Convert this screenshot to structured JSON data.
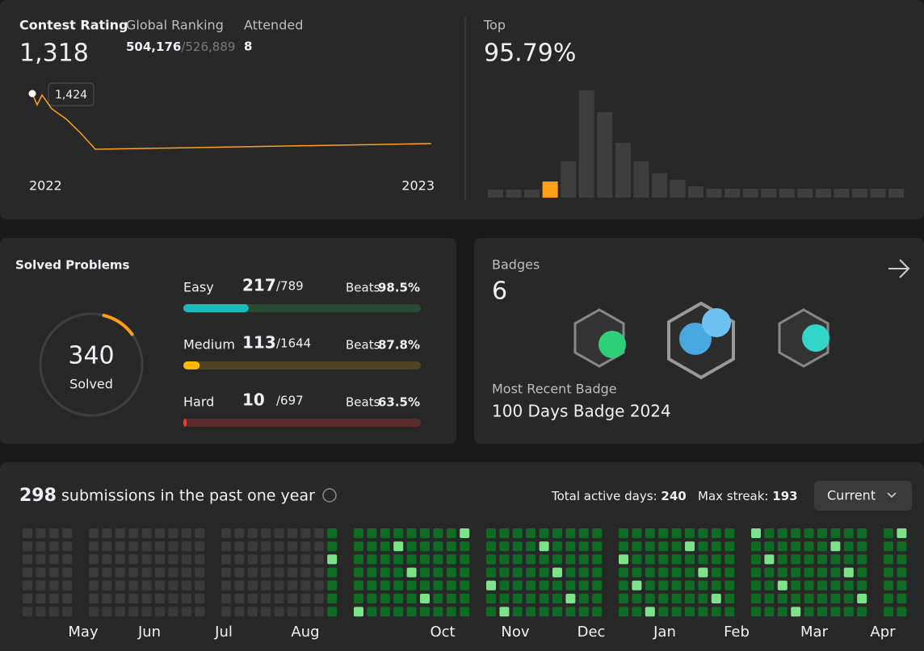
{
  "contest": {
    "rating_label": "Contest Rating",
    "rating": "1,318",
    "ranking_label": "Global Ranking",
    "ranking": "504,176",
    "ranking_total": "/526,889",
    "attended_label": "Attended",
    "attended": "8",
    "tooltip": "1,424",
    "years": [
      "2022",
      "2023"
    ],
    "rating_history": [
      1424,
      1400,
      1421,
      1392,
      1370,
      1340,
      1306,
      1318
    ],
    "top_label": "Top",
    "top": "95.79%",
    "distribution": [
      10,
      10,
      10,
      20,
      45,
      133,
      106,
      68,
      45,
      30,
      22,
      14,
      11,
      11,
      11,
      11,
      11,
      11,
      11,
      11,
      11,
      11,
      11
    ],
    "highlight_index": 3
  },
  "solved": {
    "title": "Solved Problems",
    "count": 340,
    "count_label": "Solved",
    "rows": [
      {
        "name": "Easy",
        "solved": 217,
        "total": {
          "value": 789,
          "label": "/789"
        },
        "beats_label": "Beats",
        "beats": "98.5%",
        "color": "#1cbaba",
        "track": "#2a4a35"
      },
      {
        "name": "Medium",
        "solved": 113,
        "total": {
          "value": 1644,
          "label": "/1644"
        },
        "beats_label": "Beats",
        "beats": "87.8%",
        "color": "#ffb700",
        "track": "#4e4322"
      },
      {
        "name": "Hard",
        "solved": 10,
        "total": {
          "value": 697,
          "label": "/697"
        },
        "beats_label": "Beats",
        "beats": "63.5%",
        "color": "#f63737",
        "track": "#5a2b2b"
      }
    ]
  },
  "badges": {
    "title": "Badges",
    "count": "6",
    "recent_label": "Most Recent Badge",
    "recent": "100 Days Badge 2024"
  },
  "submissions": {
    "count": "298",
    "text": "submissions in the past one year",
    "active_label": "Total active days:",
    "active": "240",
    "streak_label": "Max streak:",
    "streak": "193",
    "dropdown": "Current",
    "months": [
      "May",
      "Jun",
      "Jul",
      "Aug",
      "Oct",
      "Nov",
      "Dec",
      "Jan",
      "Feb",
      "Mar",
      "Apr"
    ]
  }
}
